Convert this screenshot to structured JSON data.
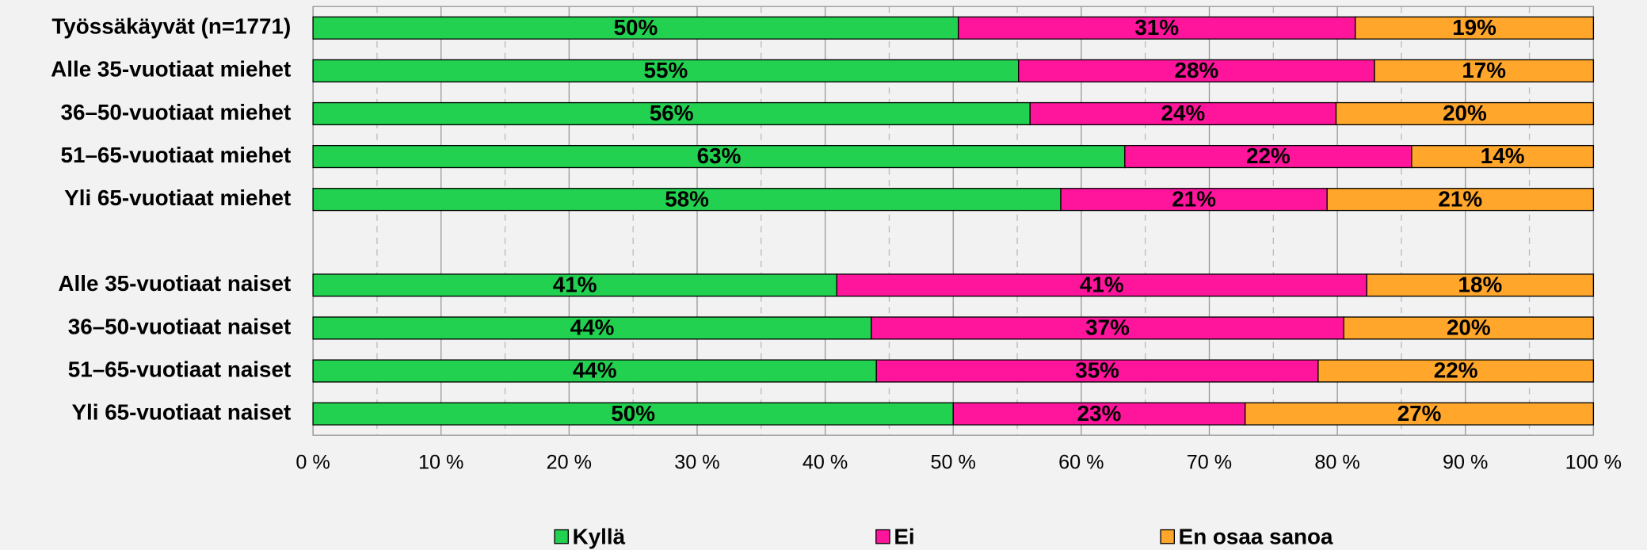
{
  "chart_data": {
    "type": "stacked_barh",
    "categories": [
      "Työssäkäyvät (n=1771)",
      "Alle 35-vuotiaat miehet",
      "36–50-vuotiaat miehet",
      "51–65-vuotiaat miehet",
      "Yli 65-vuotiaat miehet",
      null,
      "Alle 35-vuotiaat naiset",
      "36–50-vuotiaat naiset",
      "51–65-vuotiaat naiset",
      "Yli 65-vuotiaat naiset"
    ],
    "series": [
      {
        "name": "Kyllä",
        "color": "#22d14f",
        "values": [
          50.4,
          55.1,
          56.0,
          63.4,
          58.4,
          null,
          40.9,
          43.6,
          44.0,
          50.0
        ],
        "value_labels": [
          "50%",
          "55%",
          "56%",
          "63%",
          "58%",
          null,
          "41%",
          "44%",
          "44%",
          "50%"
        ]
      },
      {
        "name": "Ei",
        "color": "#ff149c",
        "values": [
          31.0,
          27.8,
          23.9,
          22.4,
          20.8,
          null,
          41.4,
          36.9,
          34.5,
          22.8
        ],
        "value_labels": [
          "31%",
          "28%",
          "24%",
          "22%",
          "21%",
          null,
          "41%",
          "37%",
          "35%",
          "23%"
        ]
      },
      {
        "name": "En osaa sanoa",
        "color": "#ffa62b",
        "values": [
          18.6,
          17.1,
          20.1,
          14.2,
          20.8,
          null,
          17.7,
          19.5,
          21.5,
          27.2
        ],
        "value_labels": [
          "19%",
          "17%",
          "20%",
          "14%",
          "21%",
          null,
          "18%",
          "20%",
          "22%",
          "27%"
        ]
      }
    ],
    "xlim": [
      0,
      100
    ],
    "xticks": [
      {
        "value": 0,
        "label": "0 %"
      },
      {
        "value": 10,
        "label": "10 %"
      },
      {
        "value": 20,
        "label": "20 %"
      },
      {
        "value": 30,
        "label": "30 %"
      },
      {
        "value": 40,
        "label": "40 %"
      },
      {
        "value": 50,
        "label": "50 %"
      },
      {
        "value": 60,
        "label": "60 %"
      },
      {
        "value": 70,
        "label": "70 %"
      },
      {
        "value": 80,
        "label": "80 %"
      },
      {
        "value": 90,
        "label": "90 %"
      },
      {
        "value": 100,
        "label": "100 %"
      }
    ],
    "grid": true,
    "legend": "bottom"
  }
}
